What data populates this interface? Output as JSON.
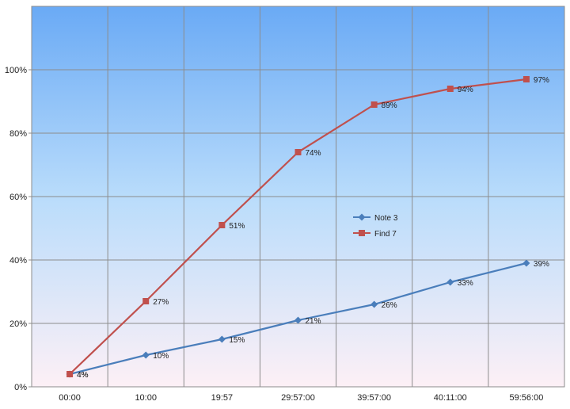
{
  "chart_data": {
    "type": "line",
    "categories": [
      "00:00",
      "10:00",
      "19:57",
      "29:57:00",
      "39:57:00",
      "40:11:00",
      "59:56:00"
    ],
    "series": [
      {
        "name": "Note 3",
        "values": [
          4,
          10,
          15,
          21,
          26,
          33,
          39
        ],
        "labels": [
          "4%",
          "10%",
          "15%",
          "21%",
          "26%",
          "33%",
          "39%"
        ],
        "color": "#4a7ebb",
        "marker": "diamond"
      },
      {
        "name": "Find 7",
        "values": [
          4,
          27,
          51,
          74,
          89,
          94,
          97
        ],
        "labels": [
          "4%",
          "27%",
          "51%",
          "74%",
          "89%",
          "94%",
          "97%"
        ],
        "color": "#c0504d",
        "marker": "square"
      }
    ],
    "y_ticks": [
      "0%",
      "20%",
      "40%",
      "60%",
      "80%",
      "100%"
    ],
    "ylim": [
      0,
      120
    ],
    "grid": true,
    "legend_position": "center-right",
    "background": {
      "top": "#6aaaf5",
      "middle": "#b9dcfb",
      "bottom": "#fdf0f6"
    }
  }
}
